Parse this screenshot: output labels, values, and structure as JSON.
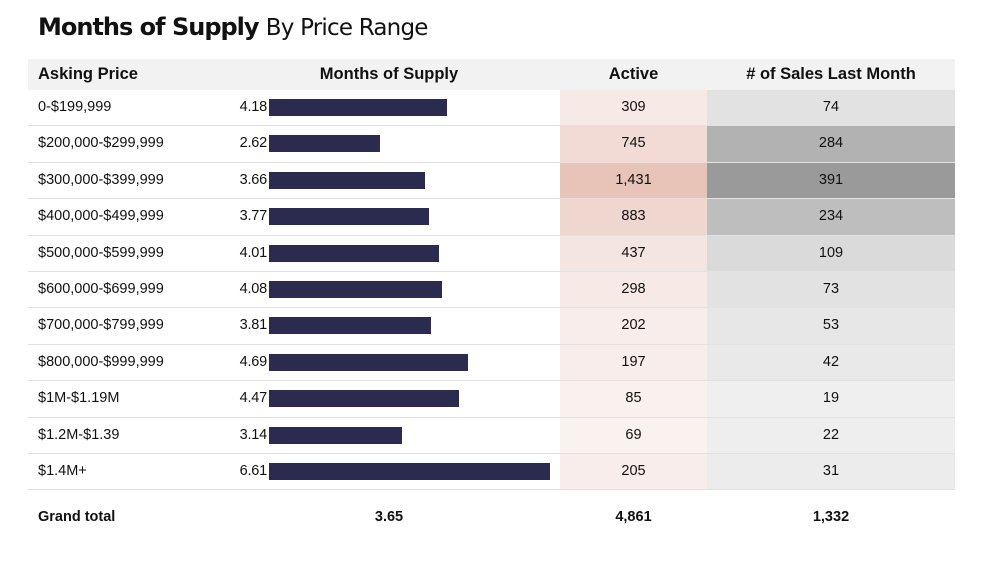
{
  "title": {
    "main": "Months of Supply",
    "sub": "By Price Range"
  },
  "headers": {
    "price": "Asking Price",
    "mos": "Months of Supply",
    "active": "Active",
    "sales": "# of Sales Last Month"
  },
  "colors": {
    "bar": "#2b2b4f",
    "active_heat": "#e8c3b8",
    "sales_heat": "#9a9a9a"
  },
  "chart_data": {
    "type": "table",
    "title": "Months of Supply By Price Range",
    "columns": [
      "Asking Price",
      "Months of Supply",
      "Active",
      "# of Sales Last Month"
    ],
    "rows": [
      {
        "price": "0-$199,999",
        "mos": 4.18,
        "mos_label": "4.18",
        "active": 309,
        "active_label": "309",
        "sales": 74,
        "sales_label": "74"
      },
      {
        "price": "$200,000-$299,999",
        "mos": 2.62,
        "mos_label": "2.62",
        "active": 745,
        "active_label": "745",
        "sales": 284,
        "sales_label": "284"
      },
      {
        "price": "$300,000-$399,999",
        "mos": 3.66,
        "mos_label": "3.66",
        "active": 1431,
        "active_label": "1,431",
        "sales": 391,
        "sales_label": "391"
      },
      {
        "price": "$400,000-$499,999",
        "mos": 3.77,
        "mos_label": "3.77",
        "active": 883,
        "active_label": "883",
        "sales": 234,
        "sales_label": "234"
      },
      {
        "price": "$500,000-$599,999",
        "mos": 4.01,
        "mos_label": "4.01",
        "active": 437,
        "active_label": "437",
        "sales": 109,
        "sales_label": "109"
      },
      {
        "price": "$600,000-$699,999",
        "mos": 4.08,
        "mos_label": "4.08",
        "active": 298,
        "active_label": "298",
        "sales": 73,
        "sales_label": "73"
      },
      {
        "price": "$700,000-$799,999",
        "mos": 3.81,
        "mos_label": "3.81",
        "active": 202,
        "active_label": "202",
        "sales": 53,
        "sales_label": "53"
      },
      {
        "price": "$800,000-$999,999",
        "mos": 4.69,
        "mos_label": "4.69",
        "active": 197,
        "active_label": "197",
        "sales": 42,
        "sales_label": "42"
      },
      {
        "price": "$1M-$1.19M",
        "mos": 4.47,
        "mos_label": "4.47",
        "active": 85,
        "active_label": "85",
        "sales": 19,
        "sales_label": "19"
      },
      {
        "price": "$1.2M-$1.39",
        "mos": 3.14,
        "mos_label": "3.14",
        "active": 69,
        "active_label": "69",
        "sales": 22,
        "sales_label": "22"
      },
      {
        "price": "$1.4M+",
        "mos": 6.61,
        "mos_label": "6.61",
        "active": 205,
        "active_label": "205",
        "sales": 31,
        "sales_label": "31"
      }
    ],
    "grand_total": {
      "label": "Grand total",
      "mos": "3.65",
      "active": "4,861",
      "sales": "1,332"
    }
  }
}
